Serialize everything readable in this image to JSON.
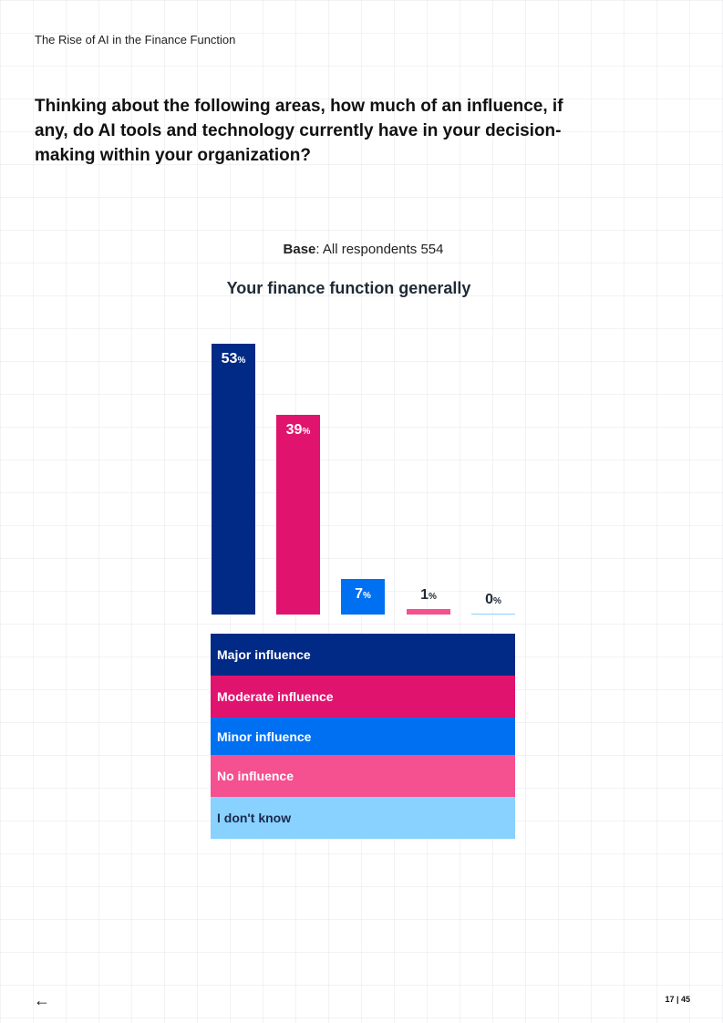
{
  "header": {
    "doc_title": "The Rise of AI in the Finance Function"
  },
  "question": "Thinking about the following areas, how much of an influence, if any, do AI tools and technology currently have in your decision-making within your organization?",
  "base": {
    "label": "Base",
    "text": ": All respondents 554"
  },
  "footer": {
    "back_icon": "left-arrow-icon",
    "page": "17 | 45"
  },
  "chart_data": {
    "type": "bar",
    "title": "Your finance function generally",
    "subtitle": "Base: All respondents 554",
    "categories": [
      "Major influence",
      "Moderate influence",
      "Minor influence",
      "No influence",
      "I don't know"
    ],
    "values": [
      53,
      39,
      7,
      1,
      0
    ],
    "unit": "%",
    "colors": [
      "#002a86",
      "#e0146e",
      "#0070f2",
      "#f5508f",
      "#89d1ff"
    ],
    "label_colors": [
      "#ffffff",
      "#ffffff",
      "#ffffff",
      "#1f2a36",
      "#1f2a36"
    ],
    "legend_text_colors": [
      "#ffffff",
      "#ffffff",
      "#ffffff",
      "#ffffff",
      "#1b2a4a"
    ],
    "ylim": [
      0,
      56
    ],
    "grid": false,
    "legend_position": "bottom",
    "bars": [
      {
        "label": "Major influence",
        "value": "53",
        "pct": "%"
      },
      {
        "label": "Moderate influence",
        "value": "39",
        "pct": "%"
      },
      {
        "label": "Minor influence",
        "value": "7",
        "pct": "%"
      },
      {
        "label": "No influence",
        "value": "1",
        "pct": "%"
      },
      {
        "label": "I don't know",
        "value": "0",
        "pct": "%"
      }
    ]
  }
}
